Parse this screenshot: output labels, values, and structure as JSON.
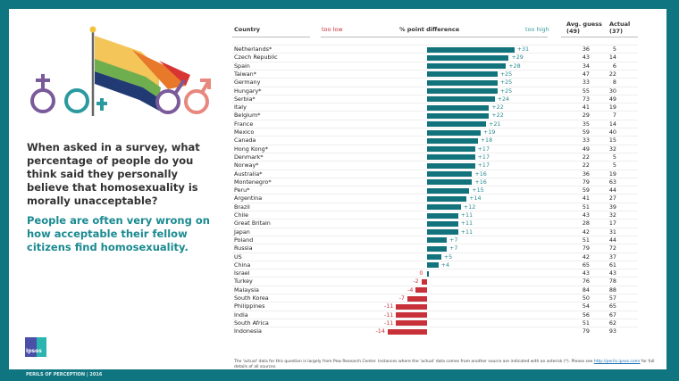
{
  "question": "When asked in a survey, what percentage of people do you think said they personally believe that homosexuality is morally unacceptable?",
  "answer": "People are often very wrong on how acceptable their fellow citizens find homosexuality.",
  "logo": "Ipsos",
  "footer": "PERILS OF PERCEPTION | 2016",
  "note": {
    "text1": "The 'actual' data for this question is largely from Pew Research Center. Instances where the 'actual' data comes from another source are indicated with an asterisk (*). Please see ",
    "link": "http://perils.ipsos.com/",
    "text2": " for full details of all sources."
  },
  "colors": {
    "frame": "#0f7580",
    "positive": "#13737d",
    "negative": "#c8313a"
  },
  "chart_data": {
    "type": "bar",
    "headers": {
      "country": "Country",
      "too_low": "too low",
      "diff": "% point difference",
      "too_high": "too high",
      "avg": "Avg. guess",
      "avg_total": "(49)",
      "actual": "Actual",
      "actual_total": "(37)"
    },
    "rows": [
      {
        "country": "Netherlands*",
        "diff": 31,
        "label": "+31",
        "avg": 36,
        "actual": 5
      },
      {
        "country": "Czech Republic",
        "diff": 29,
        "label": "+29",
        "avg": 43,
        "actual": 14
      },
      {
        "country": "Spain",
        "diff": 28,
        "label": "+28",
        "avg": 34,
        "actual": 6
      },
      {
        "country": "Taiwan*",
        "diff": 25,
        "label": "+25",
        "avg": 47,
        "actual": 22
      },
      {
        "country": "Germany",
        "diff": 25,
        "label": "+25",
        "avg": 33,
        "actual": 8
      },
      {
        "country": "Hungary*",
        "diff": 25,
        "label": "+25",
        "avg": 55,
        "actual": 30
      },
      {
        "country": "Serbia*",
        "diff": 24,
        "label": "+24",
        "avg": 73,
        "actual": 49
      },
      {
        "country": "Italy",
        "diff": 22,
        "label": "+22",
        "avg": 41,
        "actual": 19
      },
      {
        "country": "Belgium*",
        "diff": 22,
        "label": "+22",
        "avg": 29,
        "actual": 7
      },
      {
        "country": "France",
        "diff": 21,
        "label": "+21",
        "avg": 35,
        "actual": 14
      },
      {
        "country": "Mexico",
        "diff": 19,
        "label": "+19",
        "avg": 59,
        "actual": 40
      },
      {
        "country": "Canada",
        "diff": 18,
        "label": "+18",
        "avg": 33,
        "actual": 15
      },
      {
        "country": "Hong Kong*",
        "diff": 17,
        "label": "+17",
        "avg": 49,
        "actual": 32
      },
      {
        "country": "Denmark*",
        "diff": 17,
        "label": "+17",
        "avg": 22,
        "actual": 5
      },
      {
        "country": "Norway*",
        "diff": 17,
        "label": "+17",
        "avg": 22,
        "actual": 5
      },
      {
        "country": "Australia*",
        "diff": 16,
        "label": "+16",
        "avg": 36,
        "actual": 19
      },
      {
        "country": "Montenegro*",
        "diff": 16,
        "label": "+16",
        "avg": 79,
        "actual": 63
      },
      {
        "country": "Peru*",
        "diff": 15,
        "label": "+15",
        "avg": 59,
        "actual": 44
      },
      {
        "country": "Argentina",
        "diff": 14,
        "label": "+14",
        "avg": 41,
        "actual": 27
      },
      {
        "country": "Brazil",
        "diff": 12,
        "label": "+12",
        "avg": 51,
        "actual": 39
      },
      {
        "country": "Chile",
        "diff": 11,
        "label": "+11",
        "avg": 43,
        "actual": 32
      },
      {
        "country": "Great Britain",
        "diff": 11,
        "label": "+11",
        "avg": 28,
        "actual": 17
      },
      {
        "country": "Japan",
        "diff": 11,
        "label": "+11",
        "avg": 42,
        "actual": 31
      },
      {
        "country": "Poland",
        "diff": 7,
        "label": "+7",
        "avg": 51,
        "actual": 44
      },
      {
        "country": "Russia",
        "diff": 7,
        "label": "+7",
        "avg": 79,
        "actual": 72
      },
      {
        "country": "US",
        "diff": 5,
        "label": "+5",
        "avg": 42,
        "actual": 37
      },
      {
        "country": "China",
        "diff": 4,
        "label": "+4",
        "avg": 65,
        "actual": 61
      },
      {
        "country": "Israel",
        "diff": 0,
        "label": "0",
        "avg": 43,
        "actual": 43
      },
      {
        "country": "Turkey",
        "diff": -2,
        "label": "-2",
        "avg": 76,
        "actual": 78
      },
      {
        "country": "Malaysia",
        "diff": -4,
        "label": "-4",
        "avg": 84,
        "actual": 88
      },
      {
        "country": "South Korea",
        "diff": -7,
        "label": "-7",
        "avg": 50,
        "actual": 57
      },
      {
        "country": "Philippines",
        "diff": -11,
        "label": "-11",
        "avg": 54,
        "actual": 65
      },
      {
        "country": "India",
        "diff": -11,
        "label": "-11",
        "avg": 56,
        "actual": 67
      },
      {
        "country": "South Africa",
        "diff": -11,
        "label": "-11",
        "avg": 51,
        "actual": 62
      },
      {
        "country": "Indonesia",
        "diff": -14,
        "label": "-14",
        "avg": 79,
        "actual": 93
      }
    ]
  }
}
